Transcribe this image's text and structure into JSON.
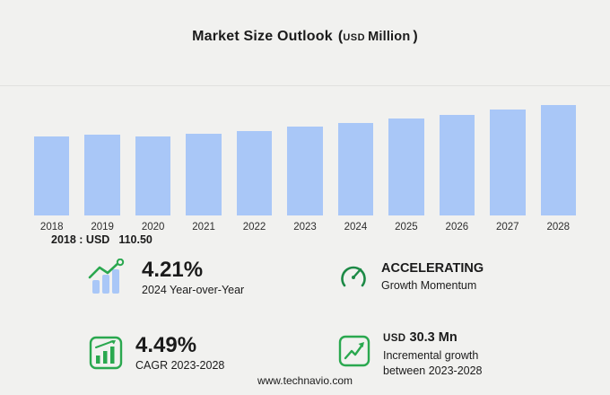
{
  "title": {
    "main": "Market Size Outlook",
    "open_paren": "(",
    "currency": "USD",
    "unit": "Million",
    "close_paren": ")"
  },
  "chart_data": {
    "type": "bar",
    "title": "Market Size Outlook (USD Million)",
    "categories": [
      "2018",
      "2019",
      "2020",
      "2021",
      "2022",
      "2023",
      "2024",
      "2025",
      "2026",
      "2027",
      "2028"
    ],
    "values": [
      110.5,
      112.8,
      110.2,
      113.5,
      117.5,
      123.4,
      128.6,
      134.4,
      140.5,
      146.9,
      153.7
    ],
    "unit": "USD Million",
    "ylim": [
      0,
      160
    ],
    "grid": false,
    "legend": false,
    "bar_color": "#a9c7f7",
    "annotation": "2018 : USD 110.50"
  },
  "annotation": {
    "year_label": "2018 : USD",
    "value": "110.50"
  },
  "stats": [
    {
      "icon": "trend-up-chart-icon",
      "value": "4.21%",
      "label": "2024 Year-over-Year"
    },
    {
      "icon": "gauge-icon",
      "value": "ACCELERATING",
      "label": "Growth Momentum"
    },
    {
      "icon": "bar-chart-icon",
      "value": "4.49%",
      "label": "CAGR 2023-2028"
    },
    {
      "icon": "growth-line-icon",
      "value_prefix": "USD",
      "value": "30.3 Mn",
      "label": "Incremental growth between 2023-2028"
    }
  ],
  "footer": {
    "website": "www.technavio.com"
  },
  "colors": {
    "bar": "#a9c7f7",
    "accent_green": "#2aa84f",
    "gauge_green": "#1d8a46",
    "background": "#f1f1ef",
    "text": "#1b1b1b"
  }
}
